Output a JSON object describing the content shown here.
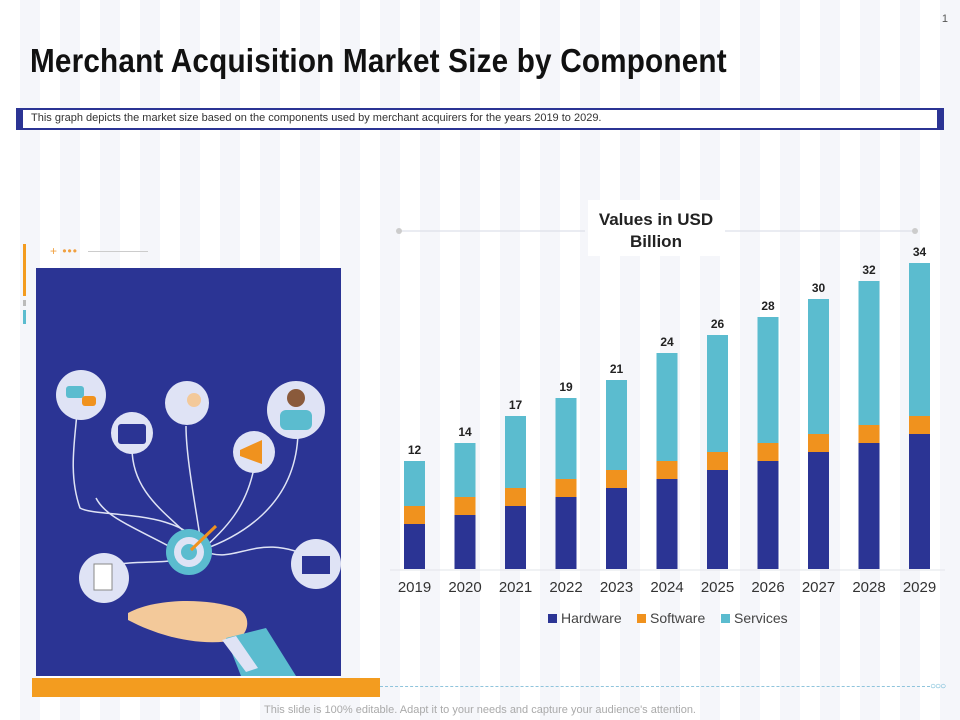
{
  "page_number": "1",
  "title": "Merchant Acquisition Market Size by Component",
  "description": "This graph depicts the market size based on the components used by merchant acquirers for the years 2019 to 2029.",
  "footer": "This slide is 100% editable. Adapt it to your needs and capture your audience's attention.",
  "colors": {
    "hardware": "#2b3494",
    "software": "#f0921e",
    "services": "#5bbccf",
    "accent_orange": "#f39c1f"
  },
  "chart_data": {
    "type": "bar",
    "stacked": true,
    "title": "Values in USD Billion",
    "categories": [
      "2019",
      "2020",
      "2021",
      "2022",
      "2023",
      "2024",
      "2025",
      "2026",
      "2027",
      "2028",
      "2029"
    ],
    "totals": [
      12,
      14,
      17,
      19,
      21,
      24,
      26,
      28,
      30,
      32,
      34
    ],
    "series": [
      {
        "name": "Hardware",
        "values": [
          5,
          6,
          7,
          8,
          9,
          10,
          11,
          12,
          13,
          14,
          15
        ]
      },
      {
        "name": "Software",
        "values": [
          2,
          2,
          2,
          2,
          2,
          2,
          2,
          2,
          2,
          2,
          2
        ]
      },
      {
        "name": "Services",
        "values": [
          5,
          6,
          8,
          9,
          10,
          12,
          13,
          14,
          15,
          16,
          17
        ]
      }
    ],
    "ylim": [
      0,
      34
    ],
    "legend": "bottom"
  }
}
